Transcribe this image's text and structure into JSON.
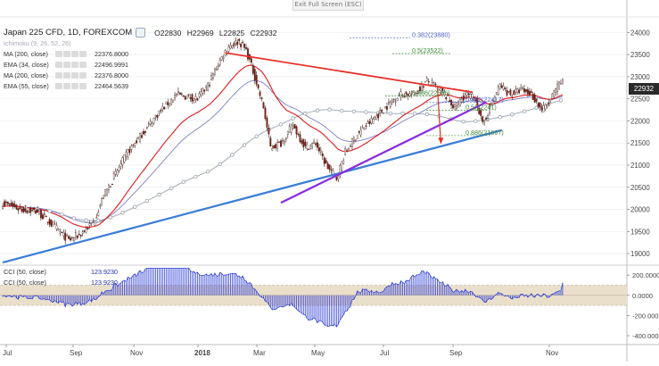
{
  "toolbar": {
    "exit_fullscreen": "Exit Full Screen (ESC)"
  },
  "header": {
    "symbol": "Japan 225 CFD, 1D, FOREXCOM",
    "ohlc": {
      "open": "O22830",
      "high": "H22969",
      "low": "L22825",
      "close": "C22932"
    }
  },
  "legend": [
    {
      "label": "Ichimoku (9, 26, 52, 26)",
      "value": "",
      "faint": true
    },
    {
      "label": "MA (200, close)",
      "value": "22376.8000"
    },
    {
      "label": "EMA (34, close)",
      "value": "22496.9991"
    },
    {
      "label": "MA (200, close)",
      "value": "22376.8000"
    },
    {
      "label": "EMA (55, close)",
      "value": "22464.5639"
    }
  ],
  "last_price": "22932",
  "colors": {
    "up_candle": "#ffffff",
    "down_candle": "#8b1a10",
    "candle_border": "#3b1b14",
    "ema34": "#e31a1c",
    "ema55": "#7b7fc4",
    "ma200": "#9aa3ad",
    "trendline_red": "#e8302a",
    "trendline_purple": "#8a2be2",
    "trendline_blue": "#3b7dd8",
    "cci": "#2b3bd6",
    "cci_band": "#eadfcb",
    "fib_blue": "#4a5fc4",
    "fib_green": "#3f8a3a"
  },
  "chart_data": {
    "type": "candlestick",
    "y_axis": {
      "ticks": [
        19000,
        19500,
        20000,
        20500,
        21000,
        21500,
        22000,
        22500,
        23000,
        23500,
        24000
      ],
      "range": [
        18780,
        24330
      ]
    },
    "x_axis": {
      "labels": [
        "Jul",
        "Sep",
        "Nov",
        "2018",
        "Mar",
        "May",
        "Jul",
        "Sep",
        "Nov"
      ]
    },
    "fib_annotations": [
      {
        "label": "0.382(23880)",
        "price": 23880,
        "color": "blue"
      },
      {
        "label": "0.5(23522)",
        "price": 23522,
        "color": "green"
      },
      {
        "label": "0.886(22566)",
        "price": 22566,
        "color": "green"
      },
      {
        "label": "0.382(22417)",
        "price": 22417,
        "color": "blue"
      },
      {
        "label": "0.5(22241)",
        "price": 22241,
        "color": "green"
      },
      {
        "label": "0.886(21667)",
        "price": 21667,
        "color": "green"
      }
    ],
    "anchors": [
      {
        "t": 0,
        "p": 20150
      },
      {
        "t": 10,
        "p": 20000
      },
      {
        "t": 20,
        "p": 19950
      },
      {
        "t": 30,
        "p": 19600
      },
      {
        "t": 38,
        "p": 19300
      },
      {
        "t": 45,
        "p": 19450
      },
      {
        "t": 52,
        "p": 19700
      },
      {
        "t": 58,
        "p": 20300
      },
      {
        "t": 65,
        "p": 20800
      },
      {
        "t": 72,
        "p": 21300
      },
      {
        "t": 82,
        "p": 21800
      },
      {
        "t": 90,
        "p": 22200
      },
      {
        "t": 100,
        "p": 22600
      },
      {
        "t": 112,
        "p": 22500
      },
      {
        "t": 118,
        "p": 22800
      },
      {
        "t": 124,
        "p": 23300
      },
      {
        "t": 130,
        "p": 23700
      },
      {
        "t": 136,
        "p": 23800
      },
      {
        "t": 140,
        "p": 23600
      },
      {
        "t": 145,
        "p": 23000
      },
      {
        "t": 150,
        "p": 22300
      },
      {
        "t": 154,
        "p": 21400
      },
      {
        "t": 160,
        "p": 21500
      },
      {
        "t": 167,
        "p": 21900
      },
      {
        "t": 174,
        "p": 21400
      },
      {
        "t": 180,
        "p": 21500
      },
      {
        "t": 186,
        "p": 21000
      },
      {
        "t": 192,
        "p": 20700
      },
      {
        "t": 197,
        "p": 21300
      },
      {
        "t": 204,
        "p": 21700
      },
      {
        "t": 212,
        "p": 22000
      },
      {
        "t": 220,
        "p": 22300
      },
      {
        "t": 228,
        "p": 22600
      },
      {
        "t": 236,
        "p": 22600
      },
      {
        "t": 244,
        "p": 22900
      },
      {
        "t": 252,
        "p": 22700
      },
      {
        "t": 260,
        "p": 22300
      },
      {
        "t": 266,
        "p": 22600
      },
      {
        "t": 272,
        "p": 22500
      },
      {
        "t": 276,
        "p": 21900
      },
      {
        "t": 280,
        "p": 22300
      },
      {
        "t": 286,
        "p": 22800
      },
      {
        "t": 292,
        "p": 22600
      },
      {
        "t": 298,
        "p": 22700
      },
      {
        "t": 304,
        "p": 22600
      },
      {
        "t": 310,
        "p": 22250
      },
      {
        "t": 314,
        "p": 22400
      },
      {
        "t": 318,
        "p": 22700
      },
      {
        "t": 322,
        "p": 22932
      }
    ],
    "cci_value_label": "123.9230",
    "cci_label": "CCI (50, close)",
    "cci_y_ticks": [
      200,
      0,
      -200,
      -400
    ],
    "cci_range": [
      -470,
      290
    ],
    "cci_band": [
      -100,
      100
    ]
  }
}
